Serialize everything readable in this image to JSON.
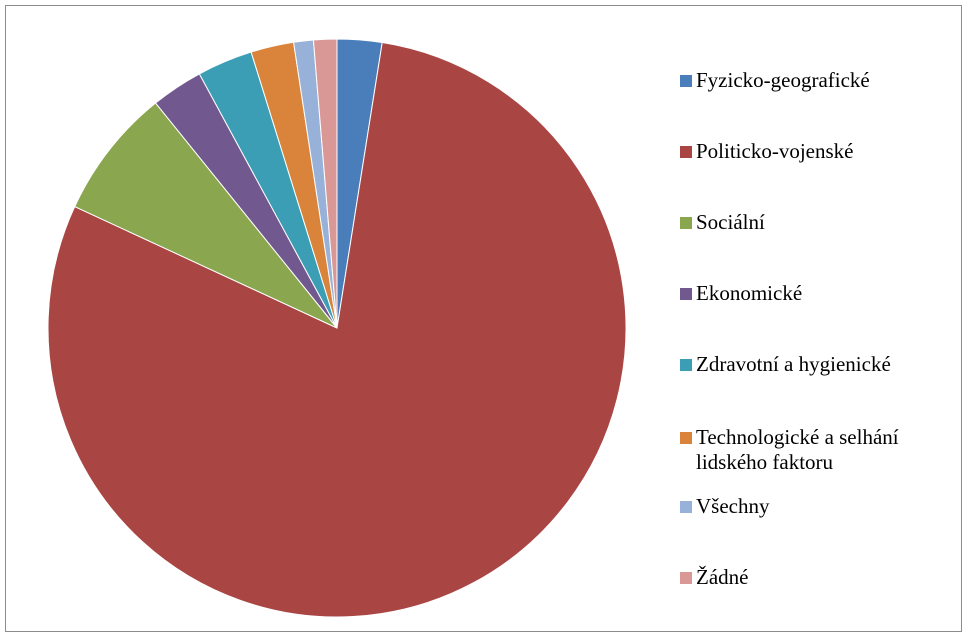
{
  "chart_data": {
    "type": "pie",
    "title": "",
    "start_angle_deg": 0,
    "direction": "clockwise",
    "legend_position": "right",
    "slices": [
      {
        "label": "Fyzicko-geografické",
        "value": 2.5,
        "color": "#4a7ebb"
      },
      {
        "label": "Politicko-vojenské",
        "value": 79.4,
        "color": "#a94543"
      },
      {
        "label": "Sociální",
        "value": 7.3,
        "color": "#8aa64e"
      },
      {
        "label": "Ekonomické",
        "value": 2.9,
        "color": "#71588f"
      },
      {
        "label": "Zdravotní a hygienické",
        "value": 3.1,
        "color": "#3c9eb5"
      },
      {
        "label": "Technologické a selhání lidského faktoru",
        "value": 2.4,
        "color": "#d9843a"
      },
      {
        "label": "Všechny",
        "value": 1.1,
        "color": "#98b1d8"
      },
      {
        "label": "Žádné",
        "value": 1.3,
        "color": "#d99796"
      }
    ]
  },
  "legend": {
    "items": [
      "Fyzicko-geografické",
      "Politicko-vojenské",
      "Sociální",
      "Ekonomické",
      "Zdravotní a hygienické",
      "Technologické a selhání lidského faktoru",
      "Všechny",
      "Žádné"
    ]
  }
}
